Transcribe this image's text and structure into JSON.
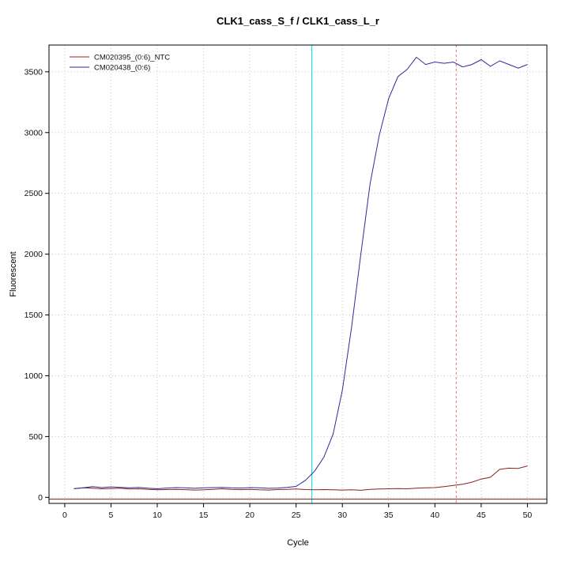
{
  "chart_data": {
    "type": "line",
    "title": "CLK1_cass_S_f / CLK1_cass_L_r",
    "xlabel": "Cycle",
    "ylabel": "Fluorescent",
    "xlim": [
      -1.7,
      52.1
    ],
    "ylim": [
      -50,
      3720
    ],
    "xticks": [
      0,
      5,
      10,
      15,
      20,
      25,
      30,
      35,
      40,
      45,
      50
    ],
    "yticks": [
      0,
      500,
      1000,
      1500,
      2000,
      2500,
      3000,
      3500
    ],
    "grid": true,
    "grid_color": "#c4c4c4",
    "legend_position": "top-left",
    "x": [
      1,
      2,
      3,
      4,
      5,
      6,
      7,
      8,
      9,
      10,
      11,
      12,
      13,
      14,
      15,
      16,
      17,
      18,
      19,
      20,
      21,
      22,
      23,
      24,
      25,
      26,
      27,
      28,
      29,
      30,
      31,
      32,
      33,
      34,
      35,
      36,
      37,
      38,
      39,
      40,
      41,
      42,
      43,
      44,
      45,
      46,
      47,
      48,
      49,
      50
    ],
    "series": [
      {
        "name": "CM020395_(0:6)_NTC",
        "color": "#8b2222",
        "values": [
          72,
          78,
          75,
          70,
          72,
          75,
          68,
          70,
          65,
          62,
          64,
          66,
          63,
          60,
          62,
          66,
          70,
          66,
          63,
          66,
          62,
          60,
          64,
          66,
          68,
          64,
          62,
          64,
          62,
          60,
          62,
          58,
          66,
          68,
          70,
          72,
          70,
          75,
          78,
          80,
          88,
          98,
          108,
          125,
          150,
          165,
          230,
          240,
          238,
          258
        ]
      },
      {
        "name": "CM020438_(0:6)",
        "color": "#2b2b9e",
        "values": [
          70,
          78,
          88,
          80,
          86,
          82,
          78,
          82,
          75,
          70,
          76,
          80,
          78,
          74,
          78,
          80,
          82,
          78,
          76,
          80,
          78,
          74,
          76,
          82,
          90,
          140,
          215,
          330,
          520,
          880,
          1400,
          2000,
          2580,
          2980,
          3280,
          3460,
          3520,
          3620,
          3560,
          3580,
          3570,
          3580,
          3540,
          3560,
          3600,
          3545,
          3590,
          3560,
          3530,
          3560
        ]
      }
    ],
    "threshold_line": {
      "y": -15,
      "color": "#7f1a1a"
    },
    "vlines": [
      {
        "x": 26.7,
        "color": "#00dfe6",
        "dash": "",
        "name": "ct-marker-cyan"
      },
      {
        "x": 42.3,
        "color": "#e07070",
        "dash": "3,3",
        "name": "ct-marker-red"
      }
    ]
  }
}
